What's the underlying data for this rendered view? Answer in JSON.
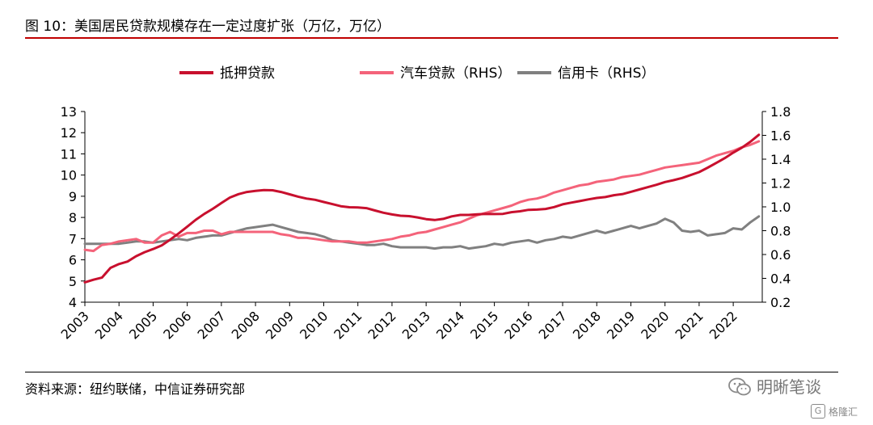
{
  "header": {
    "title": "图 10：美国居民贷款规模存在一定过度扩张（万亿，万亿）"
  },
  "footer": {
    "source": "资料来源：纽约联储，中信证券研究部"
  },
  "watermark": {
    "text": "明晰笔谈",
    "badge_text": "格隆汇",
    "icon": "wechat-icon"
  },
  "colors": {
    "mortgage": "#c8102e",
    "auto": "#f4637a",
    "card": "#808080"
  },
  "chart_data": {
    "type": "line",
    "title": "",
    "legend_position": "top",
    "grid": false,
    "x": [
      2003.0,
      2003.25,
      2003.5,
      2003.75,
      2004.0,
      2004.25,
      2004.5,
      2004.75,
      2005.0,
      2005.25,
      2005.5,
      2005.75,
      2006.0,
      2006.25,
      2006.5,
      2006.75,
      2007.0,
      2007.25,
      2007.5,
      2007.75,
      2008.0,
      2008.25,
      2008.5,
      2008.75,
      2009.0,
      2009.25,
      2009.5,
      2009.75,
      2010.0,
      2010.25,
      2010.5,
      2010.75,
      2011.0,
      2011.25,
      2011.5,
      2011.75,
      2012.0,
      2012.25,
      2012.5,
      2012.75,
      2013.0,
      2013.25,
      2013.5,
      2013.75,
      2014.0,
      2014.25,
      2014.5,
      2014.75,
      2015.0,
      2015.25,
      2015.5,
      2015.75,
      2016.0,
      2016.25,
      2016.5,
      2016.75,
      2017.0,
      2017.25,
      2017.5,
      2017.75,
      2018.0,
      2018.25,
      2018.5,
      2018.75,
      2019.0,
      2019.25,
      2019.5,
      2019.75,
      2020.0,
      2020.25,
      2020.5,
      2020.75,
      2021.0,
      2021.25,
      2021.5,
      2021.75,
      2022.0,
      2022.25,
      2022.5,
      2022.75
    ],
    "x_tick_labels": [
      "2003",
      "2004",
      "2005",
      "2006",
      "2007",
      "2008",
      "2009",
      "2010",
      "2011",
      "2012",
      "2013",
      "2014",
      "2015",
      "2016",
      "2017",
      "2018",
      "2019",
      "2020",
      "2021",
      "2022"
    ],
    "x_tick_values": [
      2003,
      2004,
      2005,
      2006,
      2007,
      2008,
      2009,
      2010,
      2011,
      2012,
      2013,
      2014,
      2015,
      2016,
      2017,
      2018,
      2019,
      2020,
      2021,
      2022
    ],
    "xlim": [
      2003.0,
      2022.85
    ],
    "y_left": {
      "label": "",
      "lim": [
        4,
        13
      ],
      "ticks": [
        4,
        5,
        6,
        7,
        8,
        9,
        10,
        11,
        12,
        13
      ],
      "tick_labels": [
        "4",
        "5",
        "6",
        "7",
        "8",
        "9",
        "10",
        "11",
        "12",
        "13"
      ]
    },
    "y_right": {
      "label": "",
      "lim": [
        0.2,
        1.8
      ],
      "ticks": [
        0.2,
        0.4,
        0.6,
        0.8,
        1.0,
        1.2,
        1.4,
        1.6,
        1.8
      ],
      "tick_labels": [
        "0.2",
        "0.4",
        "0.6",
        "0.8",
        "1.0",
        "1.2",
        "1.4",
        "1.6",
        "1.8"
      ]
    },
    "series": [
      {
        "name": "抵押贷款",
        "axis": "left",
        "color_key": "mortgage",
        "values": [
          4.94,
          5.06,
          5.16,
          5.62,
          5.8,
          5.92,
          6.17,
          6.36,
          6.51,
          6.68,
          6.95,
          7.25,
          7.56,
          7.89,
          8.17,
          8.41,
          8.68,
          8.94,
          9.1,
          9.2,
          9.25,
          9.29,
          9.28,
          9.2,
          9.09,
          8.98,
          8.89,
          8.83,
          8.73,
          8.63,
          8.53,
          8.48,
          8.47,
          8.44,
          8.33,
          8.22,
          8.14,
          8.08,
          8.06,
          8.0,
          7.92,
          7.88,
          7.93,
          8.05,
          8.12,
          8.12,
          8.15,
          8.17,
          8.16,
          8.17,
          8.25,
          8.29,
          8.36,
          8.37,
          8.4,
          8.49,
          8.62,
          8.7,
          8.77,
          8.85,
          8.92,
          8.96,
          9.05,
          9.1,
          9.21,
          9.32,
          9.43,
          9.54,
          9.67,
          9.76,
          9.86,
          10.0,
          10.14,
          10.35,
          10.57,
          10.8,
          11.06,
          11.29,
          11.57,
          11.9
        ]
      },
      {
        "name": "汽车贷款（RHS）",
        "axis": "right",
        "color_key": "auto",
        "values": [
          0.64,
          0.63,
          0.68,
          0.69,
          0.71,
          0.72,
          0.73,
          0.7,
          0.7,
          0.76,
          0.79,
          0.75,
          0.78,
          0.78,
          0.8,
          0.8,
          0.77,
          0.79,
          0.79,
          0.79,
          0.79,
          0.79,
          0.79,
          0.77,
          0.76,
          0.74,
          0.74,
          0.73,
          0.72,
          0.71,
          0.71,
          0.71,
          0.7,
          0.7,
          0.71,
          0.72,
          0.73,
          0.75,
          0.76,
          0.78,
          0.79,
          0.81,
          0.83,
          0.85,
          0.87,
          0.9,
          0.93,
          0.95,
          0.97,
          0.99,
          1.01,
          1.04,
          1.06,
          1.07,
          1.09,
          1.12,
          1.14,
          1.16,
          1.18,
          1.19,
          1.21,
          1.22,
          1.23,
          1.25,
          1.26,
          1.27,
          1.29,
          1.31,
          1.33,
          1.34,
          1.35,
          1.36,
          1.37,
          1.4,
          1.43,
          1.45,
          1.47,
          1.5,
          1.52,
          1.55
        ]
      },
      {
        "name": "信用卡（RHS）",
        "axis": "right",
        "color_key": "card",
        "values": [
          0.69,
          0.69,
          0.69,
          0.69,
          0.69,
          0.7,
          0.71,
          0.71,
          0.7,
          0.71,
          0.72,
          0.73,
          0.72,
          0.74,
          0.75,
          0.76,
          0.76,
          0.78,
          0.8,
          0.82,
          0.83,
          0.84,
          0.85,
          0.83,
          0.81,
          0.79,
          0.78,
          0.77,
          0.75,
          0.72,
          0.71,
          0.7,
          0.69,
          0.68,
          0.68,
          0.69,
          0.67,
          0.66,
          0.66,
          0.66,
          0.66,
          0.65,
          0.66,
          0.66,
          0.67,
          0.65,
          0.66,
          0.67,
          0.69,
          0.68,
          0.7,
          0.71,
          0.72,
          0.7,
          0.72,
          0.73,
          0.75,
          0.74,
          0.76,
          0.78,
          0.8,
          0.78,
          0.8,
          0.82,
          0.84,
          0.82,
          0.84,
          0.86,
          0.9,
          0.87,
          0.8,
          0.79,
          0.8,
          0.76,
          0.77,
          0.78,
          0.82,
          0.81,
          0.87,
          0.92
        ]
      }
    ]
  }
}
